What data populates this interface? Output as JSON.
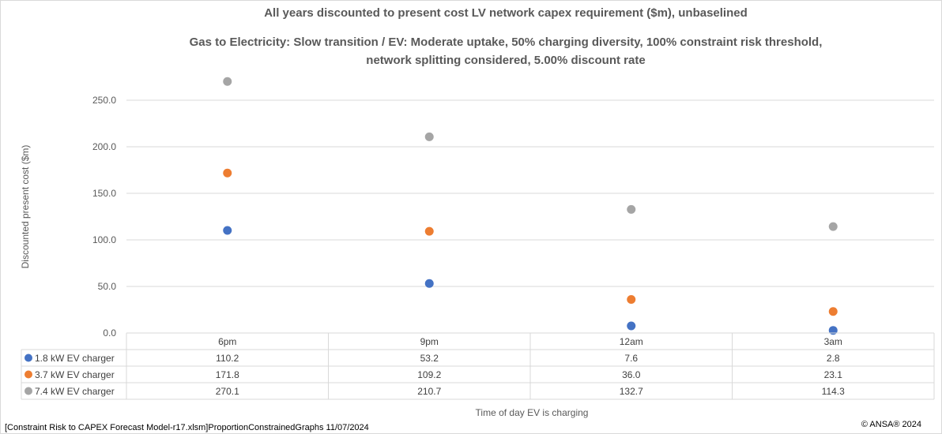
{
  "chart_data": {
    "type": "scatter",
    "title_lines": [
      "All years discounted to present cost LV network capex requirement ($m), unbaselined",
      "Gas to Electricity: Slow transition / EV: Moderate uptake, 50% charging diversity, 100% constraint risk threshold,",
      "network splitting considered, 5.00% discount rate"
    ],
    "ylabel": "Discounted present cost ($m)",
    "xlabel": "Time of day EV is charging",
    "ylim": [
      0,
      270
    ],
    "yticks": [
      "0.0",
      "50.0",
      "100.0",
      "150.0",
      "200.0",
      "250.0"
    ],
    "grid": true,
    "categories": [
      "6pm",
      "9pm",
      "12am",
      "3am"
    ],
    "series": [
      {
        "name": "1.8 kW EV charger",
        "color": "#4472C4",
        "values": [
          110.2,
          53.2,
          7.6,
          2.8
        ],
        "labels": [
          "110.2",
          "53.2",
          "7.6",
          "2.8"
        ]
      },
      {
        "name": "3.7 kW EV charger",
        "color": "#ED7D31",
        "values": [
          171.8,
          109.2,
          36.0,
          23.1
        ],
        "labels": [
          "171.8",
          "109.2",
          "36.0",
          "23.1"
        ]
      },
      {
        "name": "7.4 kW EV charger",
        "color": "#A5A5A5",
        "values": [
          270.1,
          210.7,
          132.7,
          114.3
        ],
        "labels": [
          "270.1",
          "210.7",
          "132.7",
          "114.3"
        ]
      }
    ]
  },
  "footer": {
    "source": "[Constraint Risk to CAPEX Forecast Model-r17.xlsm]ProportionConstrainedGraphs 11/07/2024",
    "copyright": "© ANSA® 2024"
  }
}
